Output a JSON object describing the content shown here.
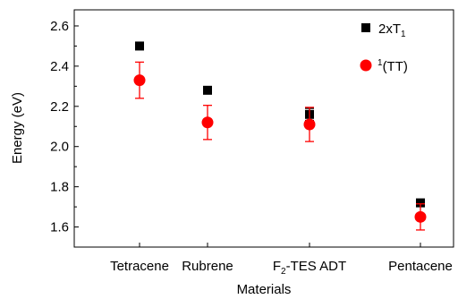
{
  "chart_data": {
    "type": "scatter",
    "categories": [
      "Tetracene",
      "Rubrene",
      "F2-TES ADT",
      "Pentacene"
    ],
    "xlabel": "Materials",
    "ylabel": "Energy (eV)",
    "ylim": [
      1.5,
      2.68
    ],
    "yticks": [
      "1.6",
      "1.8",
      "2.0",
      "2.2",
      "2.4",
      "2.6"
    ],
    "grid": false,
    "legend_position": "top-right",
    "series": [
      {
        "name": "2xT1",
        "marker": "square",
        "color": "#000000",
        "values": [
          2.5,
          2.28,
          2.16,
          1.72
        ],
        "errors": [
          0,
          0,
          0.03,
          0
        ]
      },
      {
        "name": "1(TT)",
        "marker": "circle",
        "color": "#ff0000",
        "values": [
          2.33,
          2.12,
          2.11,
          1.65
        ],
        "errors": [
          0.09,
          0.085,
          0.085,
          0.065
        ]
      }
    ],
    "legend": [
      {
        "prefix": "",
        "main": "2xT",
        "sub": "1",
        "after": ""
      },
      {
        "prefix": "1",
        "main": "(TT)",
        "sub": "",
        "after": ""
      }
    ],
    "tick_labels": [
      {
        "main": "Tetracene",
        "sub": "",
        "rest": ""
      },
      {
        "main": "Rubrene",
        "sub": "",
        "rest": ""
      },
      {
        "main": "F",
        "sub": "2",
        "rest": "-TES ADT"
      },
      {
        "main": "Pentacene",
        "sub": "",
        "rest": ""
      }
    ]
  }
}
